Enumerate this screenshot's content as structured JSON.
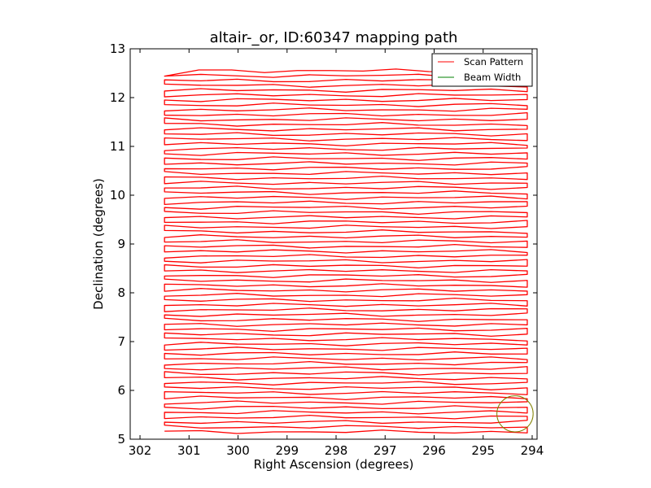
{
  "chart_data": {
    "type": "line",
    "title": "altair-_or, ID:60347 mapping path",
    "xlabel": "Right Ascension (degrees)",
    "ylabel": "Declination (degrees)",
    "xlim": [
      302.2,
      293.9
    ],
    "ylim": [
      5,
      13
    ],
    "x_inverted": true,
    "x_ticks": [
      302,
      301,
      300,
      299,
      298,
      297,
      296,
      295,
      294
    ],
    "y_ticks": [
      5,
      6,
      7,
      8,
      9,
      10,
      11,
      12,
      13
    ],
    "grid": false,
    "legend_position": "top-right",
    "colors": {
      "scan": "#ff0000",
      "beam": "#808000"
    },
    "series": [
      {
        "name": "Scan Pattern",
        "kind": "raster",
        "ra_min": 294.1,
        "ra_max": 301.5,
        "dec_start": 5.15,
        "dec_end": 12.62,
        "row_spacing": 0.1,
        "top_row_ra_min": 294.1,
        "top_row_ra_max": 300.8
      },
      {
        "name": "Beam Width",
        "kind": "circle",
        "center_ra": 294.35,
        "center_dec": 5.52,
        "radius_deg": 0.37
      }
    ]
  }
}
